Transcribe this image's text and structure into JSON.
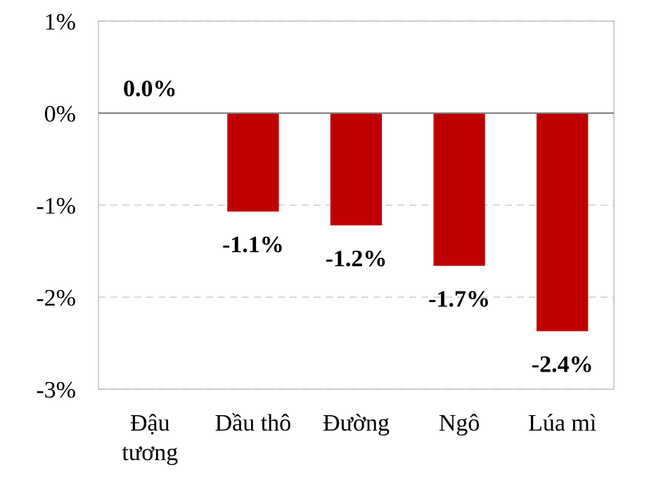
{
  "chart_data": {
    "type": "bar",
    "categories": [
      [
        "Đậu",
        "tương"
      ],
      [
        "Dầu thô"
      ],
      [
        "Đường"
      ],
      [
        "Ngô"
      ],
      [
        "Lúa mì"
      ]
    ],
    "values": [
      0.0,
      -1.07,
      -1.22,
      -1.66,
      -2.37
    ],
    "data_labels": [
      "0.0%",
      "-1.1%",
      "-1.2%",
      "-1.7%",
      "-2.4%"
    ],
    "ylim": [
      -3,
      1
    ],
    "yticks": [
      1,
      0,
      -1,
      -2,
      -3
    ],
    "ytick_labels": [
      "1%",
      "0%",
      "-1%",
      "-2%",
      "-3%"
    ],
    "grid": "dashed horizontal",
    "bar_color": "#c00000",
    "gridline_color": "#d9d9d9",
    "zero_line_color": "#808080",
    "frame_color": "#bfbfbf"
  }
}
